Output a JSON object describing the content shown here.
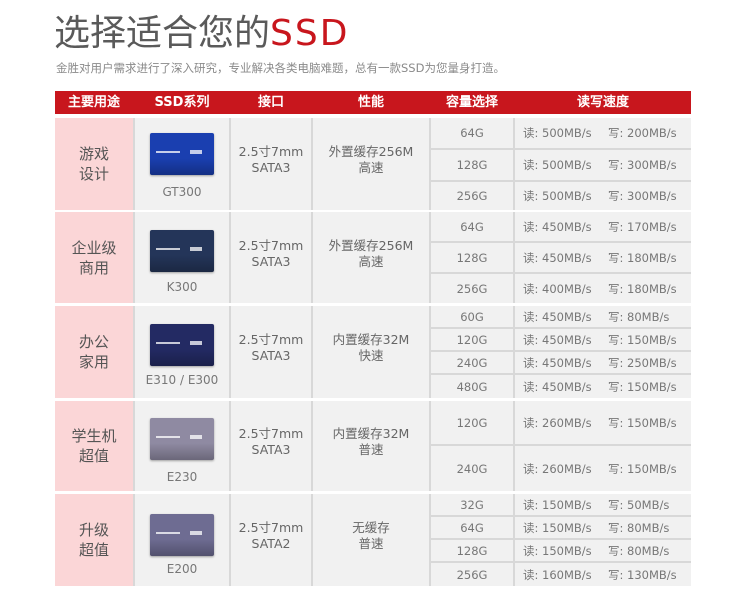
{
  "header": {
    "title_main": "选择适合您的",
    "title_accent": "SSD",
    "subtitle": "金胜对用户需求进行了深入研究，专业解决各类电脑难题，总有一款SSD为您量身打造。"
  },
  "table": {
    "columns": [
      "主要用途",
      "SSD系列",
      "接口",
      "性能",
      "容量选择",
      "读写速度"
    ],
    "read_prefix": "读: ",
    "write_prefix": "写: ",
    "groups": [
      {
        "use": "游戏设计",
        "model": "GT300",
        "color": "#1a3fb0",
        "interface": [
          "2.5寸7mm",
          "SATA3"
        ],
        "performance": [
          "外置缓存256M",
          "高速"
        ],
        "rows": [
          {
            "capacity": "64G",
            "read": "500MB/s",
            "write": "200MB/s"
          },
          {
            "capacity": "128G",
            "read": "500MB/s",
            "write": "300MB/s"
          },
          {
            "capacity": "256G",
            "read": "500MB/s",
            "write": "300MB/s"
          }
        ]
      },
      {
        "use": "企业级商用",
        "model": "K300",
        "color": "#243559",
        "interface": [
          "2.5寸7mm",
          "SATA3"
        ],
        "performance": [
          "外置缓存256M",
          "高速"
        ],
        "rows": [
          {
            "capacity": "64G",
            "read": "450MB/s",
            "write": "170MB/s"
          },
          {
            "capacity": "128G",
            "read": "450MB/s",
            "write": "180MB/s"
          },
          {
            "capacity": "256G",
            "read": "400MB/s",
            "write": "180MB/s"
          }
        ]
      },
      {
        "use": "办公家用",
        "model": "E310 / E300",
        "color": "#232a63",
        "interface": [
          "2.5寸7mm",
          "SATA3"
        ],
        "performance": [
          "内置缓存32M",
          "快速"
        ],
        "rows": [
          {
            "capacity": "60G",
            "read": "450MB/s",
            "write": "80MB/s"
          },
          {
            "capacity": "120G",
            "read": "450MB/s",
            "write": "150MB/s"
          },
          {
            "capacity": "240G",
            "read": "450MB/s",
            "write": "250MB/s"
          },
          {
            "capacity": "480G",
            "read": "450MB/s",
            "write": "150MB/s"
          }
        ]
      },
      {
        "use": "学生机超值",
        "model": "E230",
        "color": "#8f8aa2",
        "interface": [
          "2.5寸7mm",
          "SATA3"
        ],
        "performance": [
          "内置缓存32M",
          "普速"
        ],
        "rows": [
          {
            "capacity": "120G",
            "read": "260MB/s",
            "write": "150MB/s"
          },
          {
            "capacity": "240G",
            "read": "260MB/s",
            "write": "150MB/s"
          }
        ]
      },
      {
        "use": "升级超值",
        "model": "E200",
        "color": "#6e6c92",
        "interface": [
          "2.5寸7mm",
          "SATA2"
        ],
        "performance": [
          "无缓存",
          "普速"
        ],
        "rows": [
          {
            "capacity": "32G",
            "read": "150MB/s",
            "write": "50MB/s"
          },
          {
            "capacity": "64G",
            "read": "150MB/s",
            "write": "80MB/s"
          },
          {
            "capacity": "128G",
            "read": "150MB/s",
            "write": "80MB/s"
          },
          {
            "capacity": "256G",
            "read": "160MB/s",
            "write": "130MB/s"
          }
        ]
      }
    ]
  }
}
